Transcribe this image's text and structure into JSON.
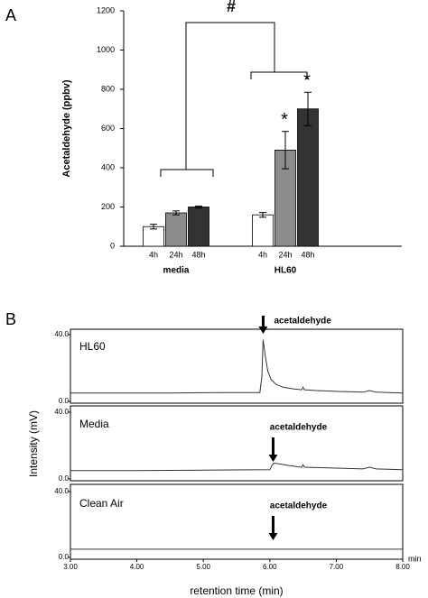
{
  "chart_data": [
    {
      "type": "bar",
      "panel_label": "A",
      "ylabel": "Acetaldehyde (ppbv)",
      "categories": [
        "media",
        "HL60"
      ],
      "series": [
        {
          "name": "4h",
          "color": "#ffffff",
          "values": [
            100,
            160
          ],
          "errors": [
            12,
            12
          ]
        },
        {
          "name": "24h",
          "color": "#8c8c8c",
          "values": [
            170,
            490
          ],
          "errors": [
            10,
            95
          ]
        },
        {
          "name": "48h",
          "color": "#333333",
          "values": [
            200,
            700
          ],
          "errors": [
            5,
            85
          ]
        }
      ],
      "ylim": [
        0,
        1200
      ],
      "yticks": [
        0,
        200,
        400,
        600,
        800,
        1000,
        1200
      ],
      "annotations": [
        "#",
        "*",
        "*"
      ]
    },
    {
      "type": "line",
      "panel_label": "B",
      "xlabel": "retention time (min)",
      "ylabel": "Intensity (mV)",
      "x_unit": "min",
      "xlim": [
        3,
        8
      ],
      "xticks": [
        {
          "value": 3,
          "label": "3.00"
        },
        {
          "value": 4,
          "label": "4.00"
        },
        {
          "value": 5,
          "label": "5.00"
        },
        {
          "value": 6,
          "label": "6.00"
        },
        {
          "value": 7,
          "label": "7.00"
        },
        {
          "value": 8,
          "label": "8.00"
        }
      ],
      "ylim": [
        0,
        40
      ],
      "yticks": [
        {
          "value": 0,
          "label": "0.0"
        },
        {
          "value": 40,
          "label": "40.0"
        }
      ],
      "color": "#333333",
      "panels": [
        {
          "label": "HL60",
          "annotation": "acetaldehyde",
          "peak_x": 5.9,
          "x": [
            3,
            3.5,
            4,
            4.5,
            5,
            5.5,
            5.85,
            5.88,
            5.9,
            5.93,
            5.97,
            6.02,
            6.1,
            6.2,
            6.35,
            6.48,
            6.5,
            6.52,
            6.7,
            7,
            7.4,
            7.5,
            7.6,
            8
          ],
          "values": [
            5,
            5,
            5,
            5,
            5.2,
            5.3,
            5.3,
            15,
            37,
            28,
            18,
            13,
            10,
            8.5,
            7.5,
            7,
            8.5,
            7,
            6.5,
            6,
            5.5,
            6.5,
            5.5,
            5
          ]
        },
        {
          "label": "Media",
          "annotation": "acetaldehyde",
          "peak_x": 6.05,
          "x": [
            3,
            4,
            5,
            6,
            6.03,
            6.06,
            6.15,
            6.3,
            6.48,
            6.5,
            6.52,
            7,
            7.4,
            7.5,
            7.6,
            8
          ],
          "values": [
            5,
            5,
            5.3,
            5.5,
            8,
            9.5,
            9,
            8,
            7,
            8.5,
            7,
            6.5,
            6,
            7,
            6,
            5.5
          ]
        },
        {
          "label": "Clean Air",
          "annotation": "acetaldehyde",
          "peak_x": 6.05,
          "x": [
            3,
            4,
            5,
            6,
            7,
            8
          ],
          "values": [
            5,
            5,
            5,
            5,
            5,
            5
          ]
        }
      ]
    }
  ]
}
